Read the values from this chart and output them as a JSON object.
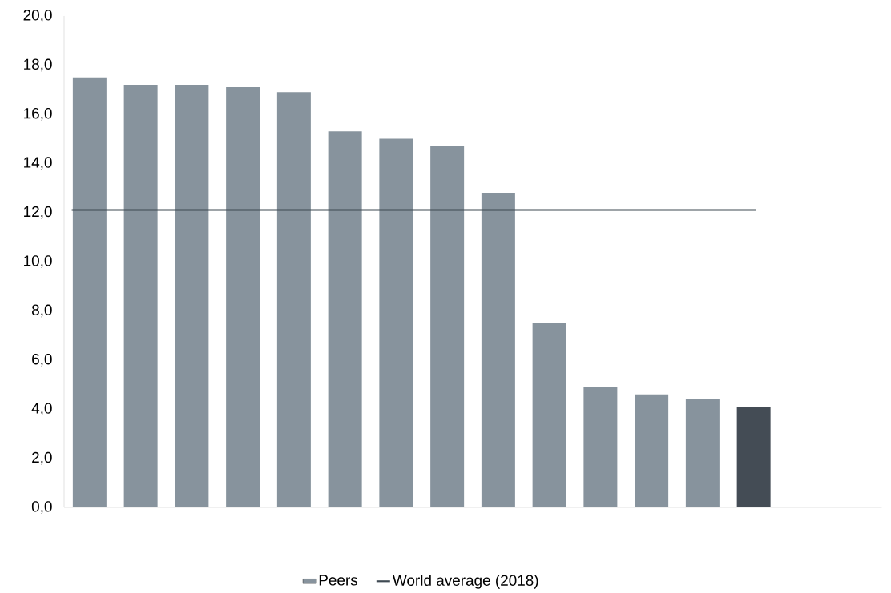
{
  "chart_data": {
    "type": "bar",
    "categories": [
      null,
      null,
      null,
      null,
      null,
      null,
      null,
      null,
      null,
      null,
      null,
      null,
      null,
      null
    ],
    "series": [
      {
        "name": "Peers",
        "color": "#87939d",
        "colors": [
          "#87939d",
          "#87939d",
          "#87939d",
          "#87939d",
          "#87939d",
          "#87939d",
          "#87939d",
          "#87939d",
          "#87939d",
          "#87939d",
          "#87939d",
          "#87939d",
          "#87939d",
          "#444c55"
        ],
        "values": [
          17.5,
          17.2,
          17.2,
          17.1,
          16.9,
          15.3,
          15.0,
          14.7,
          12.8,
          7.5,
          4.9,
          4.6,
          4.4,
          4.1
        ]
      }
    ],
    "ylim": [
      0,
      20
    ],
    "yticks": [
      {
        "value": 0,
        "label": "0,0"
      },
      {
        "value": 2,
        "label": "2,0"
      },
      {
        "value": 4,
        "label": "4,0"
      },
      {
        "value": 6,
        "label": "6,0"
      },
      {
        "value": 8,
        "label": "8,0"
      },
      {
        "value": 10,
        "label": "10,0"
      },
      {
        "value": 12,
        "label": "12,0"
      },
      {
        "value": 14,
        "label": "14,0"
      },
      {
        "value": 16,
        "label": "16,0"
      },
      {
        "value": 18,
        "label": "18,0"
      },
      {
        "value": 20,
        "label": "20,0"
      }
    ],
    "ref_lines": [
      {
        "axis": "y",
        "value": 12.1,
        "label": "World average (2018)",
        "color": "#3f4a53"
      }
    ],
    "grid": false,
    "legend": "bottom"
  }
}
